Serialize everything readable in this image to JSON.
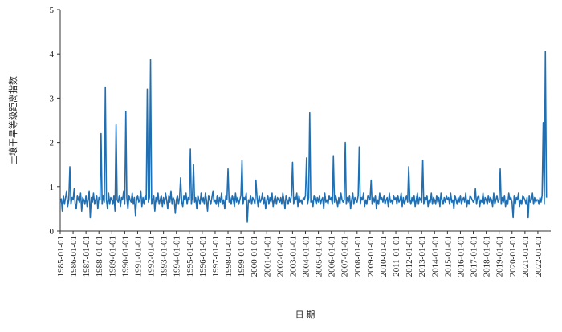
{
  "chart_data": {
    "type": "line",
    "x_label": "日 期",
    "y_label": "土壤干旱等级距离指数",
    "xlim": [
      "1985-01-01",
      "2023-01-01"
    ],
    "xticks": [
      "1985-01-01",
      "1986-01-01",
      "1987-01-01",
      "1988-01-01",
      "1989-01-01",
      "1990-01-01",
      "1991-01-01",
      "1992-01-01",
      "1993-01-01",
      "1994-01-01",
      "1995-01-01",
      "1996-01-01",
      "1997-01-01",
      "1998-01-01",
      "1999-01-01",
      "2000-01-01",
      "2001-01-01",
      "2002-01-01",
      "2003-01-01",
      "2004-01-01",
      "2005-01-01",
      "2006-01-01",
      "2007-01-01",
      "2008-01-01",
      "2009-01-01",
      "2010-01-01",
      "2011-01-01",
      "2012-01-01",
      "2013-01-01",
      "2014-01-01",
      "2015-01-01",
      "2016-01-01",
      "2017-01-01",
      "2018-01-01",
      "2019-01-01",
      "2020-01-01",
      "2021-01-01",
      "2022-01-01"
    ],
    "ylim": [
      0,
      5
    ],
    "yticks": [
      0,
      1,
      2,
      3,
      4,
      5
    ],
    "grid": false,
    "x": [
      "1985-01-01",
      "1985-02-01",
      "1985-03-01",
      "1985-04-01",
      "1985-05-01",
      "1985-06-01",
      "1985-07-01",
      "1985-08-01",
      "1985-09-01",
      "1985-10-01",
      "1985-11-01",
      "1985-12-01",
      "1986-01-01",
      "1986-02-01",
      "1986-03-01",
      "1986-04-01",
      "1986-05-01",
      "1986-06-01",
      "1986-07-01",
      "1986-08-01",
      "1986-09-01",
      "1986-10-01",
      "1986-11-01",
      "1986-12-01",
      "1987-01-01",
      "1987-02-01",
      "1987-03-01",
      "1987-04-01",
      "1987-05-01",
      "1987-06-01",
      "1987-07-01",
      "1987-08-01",
      "1987-09-01",
      "1987-10-01",
      "1987-11-01",
      "1987-12-01",
      "1988-01-01",
      "1988-02-01",
      "1988-03-01",
      "1988-04-01",
      "1988-05-01",
      "1988-06-01",
      "1988-07-01",
      "1988-08-01",
      "1988-09-01",
      "1988-10-01",
      "1988-11-01",
      "1988-12-01",
      "1989-01-01",
      "1989-02-01",
      "1989-03-01",
      "1989-04-01",
      "1989-05-01",
      "1989-06-01",
      "1989-07-01",
      "1989-08-01",
      "1989-09-01",
      "1989-10-01",
      "1989-11-01",
      "1989-12-01",
      "1990-01-01",
      "1990-02-01",
      "1990-03-01",
      "1990-04-01",
      "1990-05-01",
      "1990-06-01",
      "1990-07-01",
      "1990-08-01",
      "1990-09-01",
      "1990-10-01",
      "1990-11-01",
      "1990-12-01",
      "1991-01-01",
      "1991-02-01",
      "1991-03-01",
      "1991-04-01",
      "1991-05-01",
      "1991-06-01",
      "1991-07-01",
      "1991-08-01",
      "1991-09-01",
      "1991-10-01",
      "1991-11-01",
      "1991-12-01",
      "1992-01-01",
      "1992-02-01",
      "1992-03-01",
      "1992-04-01",
      "1992-05-01",
      "1992-06-01",
      "1992-07-01",
      "1992-08-01",
      "1992-09-01",
      "1992-10-01",
      "1992-11-01",
      "1992-12-01",
      "1993-01-01",
      "1993-02-01",
      "1993-03-01",
      "1993-04-01",
      "1993-05-01",
      "1993-06-01",
      "1993-07-01",
      "1993-08-01",
      "1993-09-01",
      "1993-10-01",
      "1993-11-01",
      "1993-12-01",
      "1994-01-01",
      "1994-02-01",
      "1994-03-01",
      "1994-04-01",
      "1994-05-01",
      "1994-06-01",
      "1994-07-01",
      "1994-08-01",
      "1994-09-01",
      "1994-10-01",
      "1994-11-01",
      "1994-12-01",
      "1995-01-01",
      "1995-02-01",
      "1995-03-01",
      "1995-04-01",
      "1995-05-01",
      "1995-06-01",
      "1995-07-01",
      "1995-08-01",
      "1995-09-01",
      "1995-10-01",
      "1995-11-01",
      "1995-12-01",
      "1996-01-01",
      "1996-02-01",
      "1996-03-01",
      "1996-04-01",
      "1996-05-01",
      "1996-06-01",
      "1996-07-01",
      "1996-08-01",
      "1996-09-01",
      "1996-10-01",
      "1996-11-01",
      "1996-12-01",
      "1997-01-01",
      "1997-02-01",
      "1997-03-01",
      "1997-04-01",
      "1997-05-01",
      "1997-06-01",
      "1997-07-01",
      "1997-08-01",
      "1997-09-01",
      "1997-10-01",
      "1997-11-01",
      "1997-12-01",
      "1998-01-01",
      "1998-02-01",
      "1998-03-01",
      "1998-04-01",
      "1998-05-01",
      "1998-06-01",
      "1998-07-01",
      "1998-08-01",
      "1998-09-01",
      "1998-10-01",
      "1998-11-01",
      "1998-12-01",
      "1999-01-01",
      "1999-02-01",
      "1999-03-01",
      "1999-04-01",
      "1999-05-01",
      "1999-06-01",
      "1999-07-01",
      "1999-08-01",
      "1999-09-01",
      "1999-10-01",
      "1999-11-01",
      "1999-12-01",
      "2000-01-01",
      "2000-02-01",
      "2000-03-01",
      "2000-04-01",
      "2000-05-01",
      "2000-06-01",
      "2000-07-01",
      "2000-08-01",
      "2000-09-01",
      "2000-10-01",
      "2000-11-01",
      "2000-12-01",
      "2001-01-01",
      "2001-02-01",
      "2001-03-01",
      "2001-04-01",
      "2001-05-01",
      "2001-06-01",
      "2001-07-01",
      "2001-08-01",
      "2001-09-01",
      "2001-10-01",
      "2001-11-01",
      "2001-12-01",
      "2002-01-01",
      "2002-02-01",
      "2002-03-01",
      "2002-04-01",
      "2002-05-01",
      "2002-06-01",
      "2002-07-01",
      "2002-08-01",
      "2002-09-01",
      "2002-10-01",
      "2002-11-01",
      "2002-12-01",
      "2003-01-01",
      "2003-02-01",
      "2003-03-01",
      "2003-04-01",
      "2003-05-01",
      "2003-06-01",
      "2003-07-01",
      "2003-08-01",
      "2003-09-01",
      "2003-10-01",
      "2003-11-01",
      "2003-12-01",
      "2004-01-01",
      "2004-02-01",
      "2004-03-01",
      "2004-04-01",
      "2004-05-01",
      "2004-06-01",
      "2004-07-01",
      "2004-08-01",
      "2004-09-01",
      "2004-10-01",
      "2004-11-01",
      "2004-12-01",
      "2005-01-01",
      "2005-02-01",
      "2005-03-01",
      "2005-04-01",
      "2005-05-01",
      "2005-06-01",
      "2005-07-01",
      "2005-08-01",
      "2005-09-01",
      "2005-10-01",
      "2005-11-01",
      "2005-12-01",
      "2006-01-01",
      "2006-02-01",
      "2006-03-01",
      "2006-04-01",
      "2006-05-01",
      "2006-06-01",
      "2006-07-01",
      "2006-08-01",
      "2006-09-01",
      "2006-10-01",
      "2006-11-01",
      "2006-12-01",
      "2007-01-01",
      "2007-02-01",
      "2007-03-01",
      "2007-04-01",
      "2007-05-01",
      "2007-06-01",
      "2007-07-01",
      "2007-08-01",
      "2007-09-01",
      "2007-10-01",
      "2007-11-01",
      "2007-12-01",
      "2008-01-01",
      "2008-02-01",
      "2008-03-01",
      "2008-04-01",
      "2008-05-01",
      "2008-06-01",
      "2008-07-01",
      "2008-08-01",
      "2008-09-01",
      "2008-10-01",
      "2008-11-01",
      "2008-12-01",
      "2009-01-01",
      "2009-02-01",
      "2009-03-01",
      "2009-04-01",
      "2009-05-01",
      "2009-06-01",
      "2009-07-01",
      "2009-08-01",
      "2009-09-01",
      "2009-10-01",
      "2009-11-01",
      "2009-12-01",
      "2010-01-01",
      "2010-02-01",
      "2010-03-01",
      "2010-04-01",
      "2010-05-01",
      "2010-06-01",
      "2010-07-01",
      "2010-08-01",
      "2010-09-01",
      "2010-10-01",
      "2010-11-01",
      "2010-12-01",
      "2011-01-01",
      "2011-02-01",
      "2011-03-01",
      "2011-04-01",
      "2011-05-01",
      "2011-06-01",
      "2011-07-01",
      "2011-08-01",
      "2011-09-01",
      "2011-10-01",
      "2011-11-01",
      "2011-12-01",
      "2012-01-01",
      "2012-02-01",
      "2012-03-01",
      "2012-04-01",
      "2012-05-01",
      "2012-06-01",
      "2012-07-01",
      "2012-08-01",
      "2012-09-01",
      "2012-10-01",
      "2012-11-01",
      "2012-12-01",
      "2013-01-01",
      "2013-02-01",
      "2013-03-01",
      "2013-04-01",
      "2013-05-01",
      "2013-06-01",
      "2013-07-01",
      "2013-08-01",
      "2013-09-01",
      "2013-10-01",
      "2013-11-01",
      "2013-12-01",
      "2014-01-01",
      "2014-02-01",
      "2014-03-01",
      "2014-04-01",
      "2014-05-01",
      "2014-06-01",
      "2014-07-01",
      "2014-08-01",
      "2014-09-01",
      "2014-10-01",
      "2014-11-01",
      "2014-12-01",
      "2015-01-01",
      "2015-02-01",
      "2015-03-01",
      "2015-04-01",
      "2015-05-01",
      "2015-06-01",
      "2015-07-01",
      "2015-08-01",
      "2015-09-01",
      "2015-10-01",
      "2015-11-01",
      "2015-12-01",
      "2016-01-01",
      "2016-02-01",
      "2016-03-01",
      "2016-04-01",
      "2016-05-01",
      "2016-06-01",
      "2016-07-01",
      "2016-08-01",
      "2016-09-01",
      "2016-10-01",
      "2016-11-01",
      "2016-12-01",
      "2017-01-01",
      "2017-02-01",
      "2017-03-01",
      "2017-04-01",
      "2017-05-01",
      "2017-06-01",
      "2017-07-01",
      "2017-08-01",
      "2017-09-01",
      "2017-10-01",
      "2017-11-01",
      "2017-12-01",
      "2018-01-01",
      "2018-02-01",
      "2018-03-01",
      "2018-04-01",
      "2018-05-01",
      "2018-06-01",
      "2018-07-01",
      "2018-08-01",
      "2018-09-01",
      "2018-10-01",
      "2018-11-01",
      "2018-12-01",
      "2019-01-01",
      "2019-02-01",
      "2019-03-01",
      "2019-04-01",
      "2019-05-01",
      "2019-06-01",
      "2019-07-01",
      "2019-08-01",
      "2019-09-01",
      "2019-10-01",
      "2019-11-01",
      "2019-12-01",
      "2020-01-01",
      "2020-02-01",
      "2020-03-01",
      "2020-04-01",
      "2020-05-01",
      "2020-06-01",
      "2020-07-01",
      "2020-08-01",
      "2020-09-01",
      "2020-10-01",
      "2020-11-01",
      "2020-12-01",
      "2021-01-01",
      "2021-02-01",
      "2021-03-01",
      "2021-04-01",
      "2021-05-01",
      "2021-06-01",
      "2021-07-01",
      "2021-08-01",
      "2021-09-01",
      "2021-10-01",
      "2021-11-01",
      "2021-12-01",
      "2022-01-01",
      "2022-02-01",
      "2022-03-01",
      "2022-04-01",
      "2022-05-01",
      "2022-06-01",
      "2022-07-01",
      "2022-08-01",
      "2022-09-01"
    ],
    "series": [
      {
        "color": "#1f6fb2",
        "values": [
          0.65,
          0.72,
          0.45,
          0.8,
          0.6,
          0.75,
          0.9,
          0.55,
          0.7,
          1.45,
          0.6,
          0.75,
          0.7,
          0.95,
          0.6,
          0.5,
          0.8,
          0.7,
          0.65,
          0.85,
          0.45,
          0.75,
          0.7,
          0.6,
          0.8,
          0.55,
          0.7,
          0.9,
          0.3,
          0.75,
          0.65,
          0.85,
          0.6,
          0.7,
          0.8,
          0.5,
          0.75,
          0.7,
          2.2,
          0.6,
          0.8,
          0.65,
          3.25,
          0.7,
          0.5,
          0.85,
          0.6,
          0.75,
          0.7,
          0.6,
          0.8,
          0.45,
          2.4,
          0.7,
          0.65,
          0.8,
          0.55,
          0.75,
          0.7,
          0.9,
          0.6,
          2.7,
          0.75,
          0.5,
          0.8,
          0.7,
          0.65,
          0.85,
          0.6,
          0.75,
          0.35,
          0.7,
          0.8,
          0.65,
          0.7,
          0.9,
          0.55,
          0.75,
          0.6,
          0.8,
          0.7,
          3.2,
          0.65,
          0.75,
          3.87,
          0.6,
          0.7,
          0.8,
          0.45,
          0.75,
          0.65,
          0.85,
          0.6,
          0.7,
          0.8,
          0.55,
          0.75,
          0.6,
          0.85,
          0.7,
          0.5,
          0.8,
          0.65,
          0.9,
          0.6,
          0.75,
          0.7,
          0.4,
          0.7,
          0.8,
          0.6,
          0.75,
          1.2,
          0.65,
          0.55,
          0.8,
          0.7,
          0.85,
          0.6,
          0.75,
          0.7,
          1.85,
          0.6,
          0.8,
          1.5,
          0.65,
          0.75,
          0.5,
          0.8,
          0.7,
          0.6,
          0.85,
          0.65,
          0.75,
          0.6,
          0.85,
          0.7,
          0.45,
          0.8,
          0.7,
          0.6,
          0.75,
          0.9,
          0.65,
          0.7,
          0.6,
          0.8,
          0.55,
          0.75,
          0.65,
          0.85,
          0.6,
          0.7,
          0.5,
          0.8,
          0.7,
          1.4,
          0.65,
          0.75,
          0.6,
          0.8,
          0.7,
          0.55,
          0.85,
          0.65,
          0.75,
          0.6,
          0.7,
          0.8,
          1.6,
          0.6,
          0.75,
          0.7,
          0.85,
          0.2,
          0.7,
          0.65,
          0.8,
          0.6,
          0.75,
          0.7,
          0.6,
          1.15,
          0.75,
          0.55,
          0.8,
          0.65,
          0.7,
          0.85,
          0.6,
          0.75,
          0.5,
          0.7,
          0.8,
          0.6,
          0.75,
          0.65,
          0.85,
          0.55,
          0.7,
          0.8,
          0.6,
          0.75,
          0.7,
          0.65,
          0.75,
          0.6,
          0.85,
          0.7,
          0.5,
          0.8,
          0.7,
          0.6,
          0.75,
          0.65,
          0.8,
          1.55,
          0.6,
          0.75,
          0.7,
          0.85,
          0.55,
          0.8,
          0.65,
          0.7,
          0.6,
          0.75,
          0.7,
          0.8,
          1.65,
          0.6,
          0.75,
          2.67,
          0.65,
          0.7,
          0.55,
          0.8,
          0.7,
          0.6,
          0.75,
          0.65,
          0.8,
          0.6,
          0.7,
          0.75,
          0.5,
          0.85,
          0.65,
          0.7,
          0.6,
          0.8,
          0.7,
          0.75,
          0.6,
          1.7,
          0.65,
          0.8,
          0.7,
          0.55,
          0.75,
          0.6,
          0.85,
          0.7,
          0.65,
          0.7,
          2.0,
          0.6,
          0.75,
          0.65,
          0.8,
          0.5,
          0.7,
          0.85,
          0.6,
          0.75,
          0.7,
          0.65,
          0.8,
          1.9,
          0.6,
          0.75,
          0.7,
          0.85,
          0.55,
          0.7,
          0.6,
          0.8,
          0.75,
          0.7,
          1.15,
          0.6,
          0.75,
          0.65,
          0.8,
          0.5,
          0.7,
          0.6,
          0.85,
          0.7,
          0.75,
          0.65,
          0.8,
          0.6,
          0.7,
          0.75,
          0.55,
          0.85,
          0.65,
          0.7,
          0.6,
          0.8,
          0.7,
          0.75,
          0.6,
          0.8,
          0.65,
          0.7,
          0.85,
          0.55,
          0.75,
          0.6,
          0.7,
          0.8,
          0.65,
          1.45,
          0.7,
          0.6,
          0.75,
          0.65,
          0.8,
          0.55,
          0.7,
          0.85,
          0.6,
          0.75,
          0.7,
          0.65,
          1.6,
          0.6,
          0.75,
          0.7,
          0.8,
          0.55,
          0.7,
          0.65,
          0.85,
          0.6,
          0.75,
          0.7,
          0.6,
          0.8,
          0.65,
          0.75,
          0.55,
          0.85,
          0.7,
          0.6,
          0.75,
          0.65,
          0.8,
          0.7,
          0.75,
          0.6,
          0.85,
          0.65,
          0.7,
          0.5,
          0.8,
          0.7,
          0.6,
          0.75,
          0.65,
          0.8,
          0.6,
          0.7,
          0.75,
          0.65,
          0.85,
          0.55,
          0.7,
          0.6,
          0.8,
          0.75,
          0.7,
          0.65,
          0.7,
          0.95,
          0.6,
          0.75,
          0.8,
          0.55,
          0.7,
          0.65,
          0.85,
          0.6,
          0.75,
          0.7,
          0.6,
          0.8,
          0.65,
          0.75,
          0.7,
          0.55,
          0.85,
          0.6,
          0.7,
          0.8,
          0.65,
          0.7,
          1.4,
          0.6,
          0.75,
          0.65,
          0.8,
          0.55,
          0.7,
          0.6,
          0.85,
          0.7,
          0.75,
          0.65,
          0.3,
          0.8,
          0.6,
          0.75,
          0.7,
          0.85,
          0.55,
          0.7,
          0.6,
          0.8,
          0.75,
          0.7,
          0.6,
          0.75,
          0.3,
          0.8,
          0.65,
          0.7,
          0.85,
          0.6,
          0.75,
          0.65,
          0.7,
          0.7,
          0.6,
          0.75,
          0.65,
          0.8,
          2.45,
          0.6,
          4.05,
          0.75
        ]
      }
    ]
  }
}
